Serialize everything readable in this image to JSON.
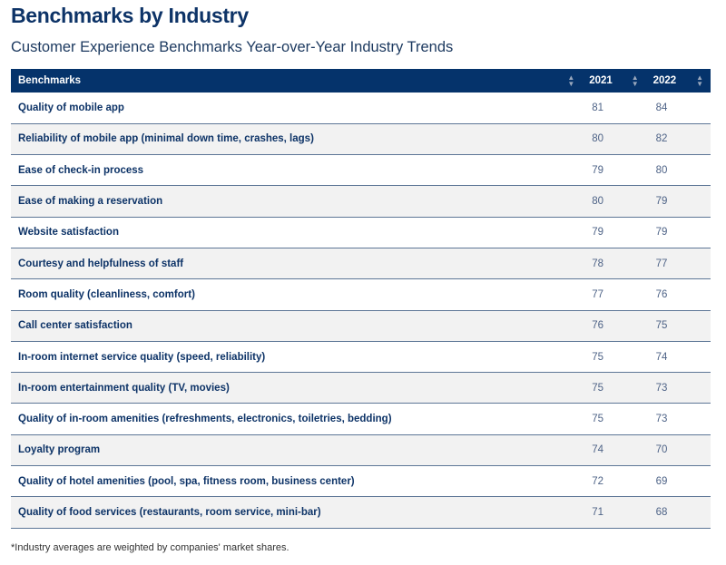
{
  "title": "Benchmarks by Industry",
  "subtitle": "Customer Experience Benchmarks Year-over-Year Industry Trends",
  "table": {
    "headers": [
      "Benchmarks",
      "2021",
      "2022"
    ],
    "rows": [
      [
        "Quality of mobile app",
        "81",
        "84"
      ],
      [
        "Reliability of mobile app (minimal down time, crashes, lags)",
        "80",
        "82"
      ],
      [
        "Ease of check-in process",
        "79",
        "80"
      ],
      [
        "Ease of making a reservation",
        "80",
        "79"
      ],
      [
        "Website satisfaction",
        "79",
        "79"
      ],
      [
        "Courtesy and helpfulness of staff",
        "78",
        "77"
      ],
      [
        "Room quality (cleanliness, comfort)",
        "77",
        "76"
      ],
      [
        "Call center satisfaction",
        "76",
        "75"
      ],
      [
        "In-room internet service quality (speed, reliability)",
        "75",
        "74"
      ],
      [
        "In-room entertainment quality (TV, movies)",
        "75",
        "73"
      ],
      [
        "Quality of in-room amenities (refreshments, electronics, toiletries, bedding)",
        "75",
        "73"
      ],
      [
        "Loyalty program",
        "74",
        "70"
      ],
      [
        "Quality of hotel amenities (pool, spa, fitness room, business center)",
        "72",
        "69"
      ],
      [
        "Quality of food services (restaurants, room service, mini-bar)",
        "71",
        "68"
      ]
    ]
  },
  "footnote": "*Industry averages are weighted by companies' market shares."
}
